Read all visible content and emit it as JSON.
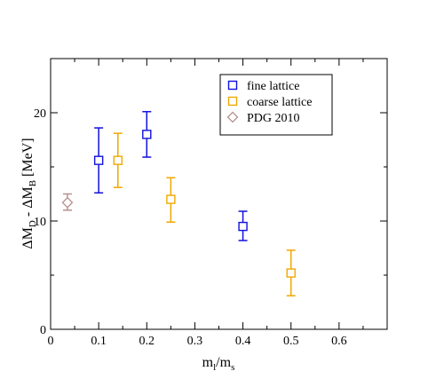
{
  "chart_data": {
    "type": "scatter",
    "xlabel": {
      "main": "m",
      "sub1": "l",
      "sep": "/m",
      "sub2": "s"
    },
    "ylabel": {
      "p1": "ΔM",
      "s1": "D",
      "p2": " - ΔM",
      "s2": "B",
      "p3": " [MeV]"
    },
    "xlim": [
      0,
      0.7
    ],
    "ylim": [
      0,
      25
    ],
    "x_ticks": [
      0,
      0.1,
      0.2,
      0.3,
      0.4,
      0.5,
      0.6
    ],
    "x_tick_labels": [
      "0",
      "0.1",
      "0.2",
      "0.3",
      "0.4",
      "0.5",
      "0.6"
    ],
    "y_ticks": [
      0,
      10,
      20
    ],
    "y_tick_labels": [
      "0",
      "10",
      "20"
    ],
    "grid": false,
    "legend_position": "top-right",
    "series": [
      {
        "name": "fine lattice",
        "marker": "square",
        "color": "#1010e0",
        "points": [
          {
            "x": 0.1,
            "y": 15.6,
            "ylo": 12.6,
            "yhi": 18.6
          },
          {
            "x": 0.2,
            "y": 18.0,
            "ylo": 15.9,
            "yhi": 20.1
          },
          {
            "x": 0.4,
            "y": 9.5,
            "ylo": 8.2,
            "yhi": 10.9
          }
        ]
      },
      {
        "name": "coarse lattice",
        "marker": "square",
        "color": "#f0a800",
        "points": [
          {
            "x": 0.14,
            "y": 15.6,
            "ylo": 13.1,
            "yhi": 18.1
          },
          {
            "x": 0.25,
            "y": 12.0,
            "ylo": 9.9,
            "yhi": 14.0
          },
          {
            "x": 0.5,
            "y": 5.2,
            "ylo": 3.1,
            "yhi": 7.3
          }
        ]
      },
      {
        "name": "PDG 2010",
        "marker": "diamond",
        "color": "#b89090",
        "points": [
          {
            "x": 0.035,
            "y": 11.7,
            "ylo": 11.0,
            "yhi": 12.5
          }
        ]
      }
    ]
  }
}
